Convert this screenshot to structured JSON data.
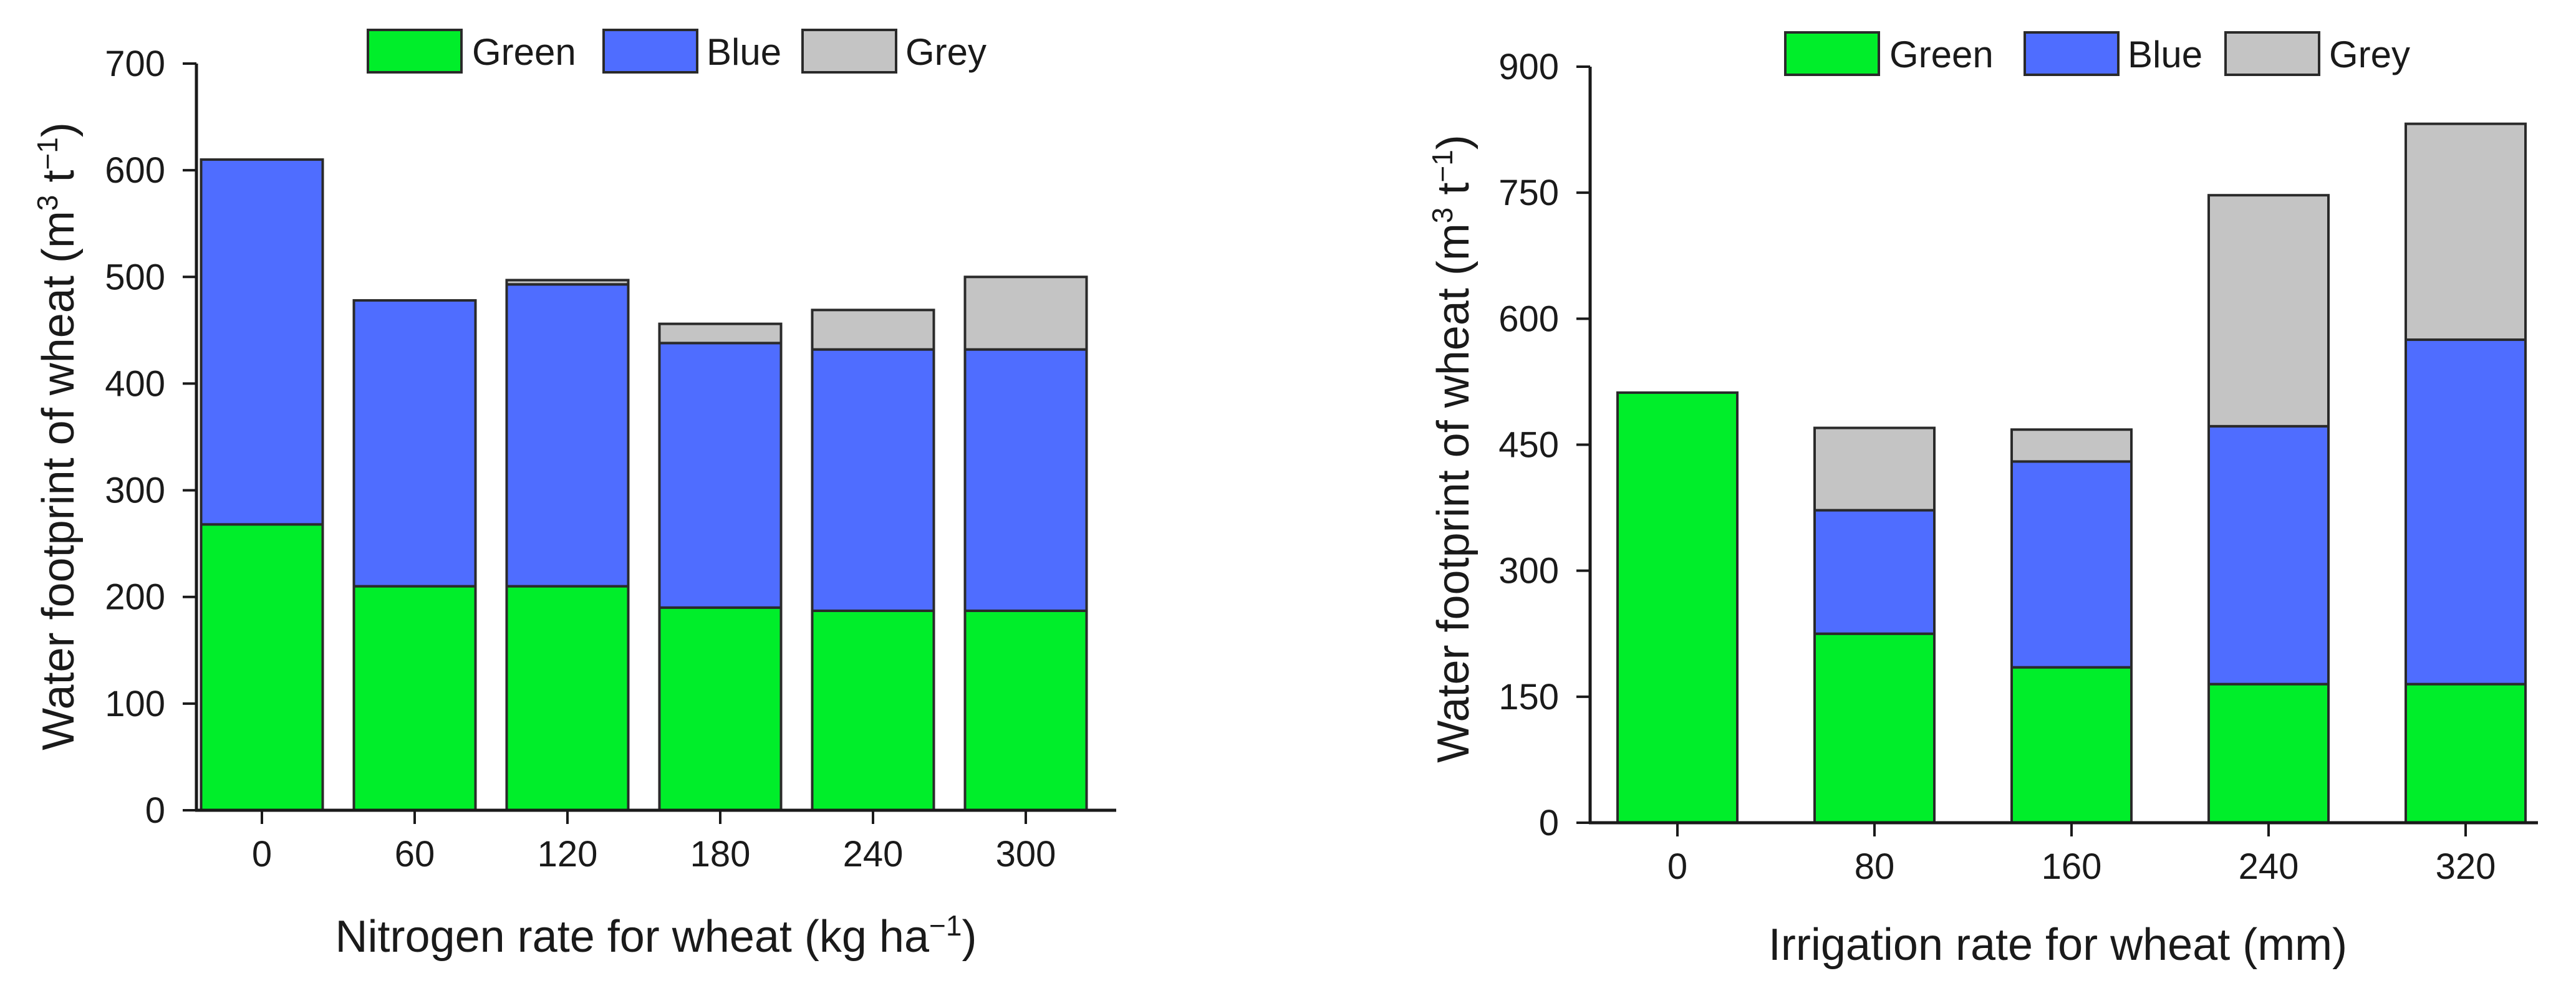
{
  "colors": {
    "Green": "#00ee2a",
    "Blue": "#4f6dff",
    "Grey": "#c4c4c4"
  },
  "chart_data": [
    {
      "type": "bar",
      "stacked": true,
      "categories": [
        "0",
        "60",
        "120",
        "180",
        "240",
        "300"
      ],
      "series": [
        {
          "name": "Green",
          "values": [
            268,
            210,
            210,
            190,
            187,
            187
          ]
        },
        {
          "name": "Blue",
          "values": [
            342,
            268,
            283,
            248,
            245,
            245
          ]
        },
        {
          "name": "Grey",
          "values": [
            0,
            0,
            4,
            18,
            37,
            68
          ]
        }
      ],
      "title": "",
      "xlabel_text": "Nitrogen rate for wheat (kg ha",
      "xlabel_sup": "−1",
      "xlabel_tail": ")",
      "ylabel_text": "Water footprint of wheat (m",
      "ylabel_sup1": "3",
      "ylabel_mid": " t",
      "ylabel_sup2": "−1",
      "ylabel_tail": ")",
      "ylim": [
        0,
        700
      ],
      "yticks": [
        "0",
        "100",
        "200",
        "300",
        "400",
        "500",
        "600",
        "700"
      ],
      "legend": [
        "Green",
        "Blue",
        "Grey"
      ],
      "legend_position": "top",
      "grid": false
    },
    {
      "type": "bar",
      "stacked": true,
      "categories": [
        "0",
        "80",
        "160",
        "240",
        "320"
      ],
      "series": [
        {
          "name": "Green",
          "values": [
            512,
            225,
            185,
            165,
            165
          ]
        },
        {
          "name": "Blue",
          "values": [
            0,
            147,
            245,
            307,
            410
          ]
        },
        {
          "name": "Grey",
          "values": [
            0,
            98,
            38,
            275,
            257
          ]
        }
      ],
      "title": "",
      "xlabel_text": "Irrigation rate for wheat (mm)",
      "ylabel_text": "Water footprint of wheat (m",
      "ylabel_sup1": "3",
      "ylabel_mid": " t",
      "ylabel_sup2": "−1",
      "ylabel_tail": ")",
      "ylim": [
        0,
        900
      ],
      "yticks": [
        "0",
        "150",
        "300",
        "450",
        "600",
        "750",
        "900"
      ],
      "legend": [
        "Green",
        "Blue",
        "Grey"
      ],
      "legend_position": "top",
      "grid": false
    }
  ]
}
